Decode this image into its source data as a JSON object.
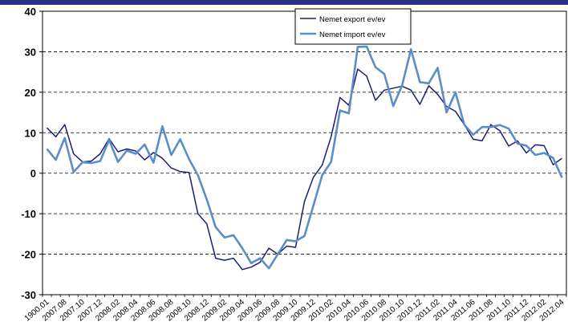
{
  "chart_data": {
    "type": "line",
    "title": "",
    "xlabel": "",
    "ylabel": "",
    "ylim": [
      -30,
      40
    ],
    "yticks": [
      -30,
      -20,
      -10,
      0,
      10,
      20,
      30,
      40
    ],
    "grid": "horizontal dashed",
    "legend_position": "top-center",
    "x_tick_labels": [
      "1900.01",
      "2007.08",
      "2007.10",
      "2007.12",
      "2008.02",
      "2008.04",
      "2008.06",
      "2008.08",
      "2008.10",
      "2008.12",
      "2009.02",
      "2009.04",
      "2009.06",
      "2009.08",
      "2009.10",
      "2009.12",
      "2010.02",
      "2010.04",
      "2010.06",
      "2010.08",
      "2010.10",
      "2010.12",
      "2011.02",
      "2011.04",
      "2011.06",
      "2011.08",
      "2011.10",
      "2011.12",
      "2012.02",
      "2012.04"
    ],
    "series": [
      {
        "name": "Nemet export ev/ev",
        "color": "#1b1f72",
        "values": [
          11.2,
          9.0,
          12.0,
          4.8,
          2.8,
          3.0,
          4.8,
          8.5,
          5.3,
          6.0,
          5.5,
          3.3,
          5.1,
          3.7,
          1.3,
          0.4,
          0.2,
          -10.0,
          -12.5,
          -21.0,
          -21.5,
          -21.0,
          -23.8,
          -23.2,
          -22.0,
          -18.5,
          -20.0,
          -18.0,
          -18.3,
          -7.0,
          -1.0,
          2.0,
          9.0,
          18.7,
          16.8,
          25.7,
          24.0,
          18.0,
          20.5,
          21.0,
          21.5,
          20.5,
          17.0,
          21.6,
          19.5,
          16.5,
          15.3,
          12.0,
          8.4,
          8.0,
          12.0,
          10.5,
          6.7,
          8.0,
          5.0,
          7.0,
          6.8,
          2.1,
          3.7
        ]
      },
      {
        "name": "Nemet import ev/ev",
        "color": "#5b8ec8",
        "values": [
          6.0,
          3.3,
          8.7,
          0.3,
          2.7,
          2.5,
          3.0,
          8.2,
          2.8,
          5.6,
          4.8,
          7.1,
          2.6,
          11.6,
          4.5,
          8.4,
          3.5,
          -0.5,
          -6.5,
          -13.3,
          -15.9,
          -15.3,
          -18.5,
          -22.2,
          -21.0,
          -23.5,
          -20.0,
          -16.5,
          -16.8,
          -15.5,
          -8.0,
          -0.5,
          2.8,
          15.5,
          14.8,
          31.2,
          31.3,
          26.2,
          24.5,
          16.6,
          21.7,
          30.6,
          22.5,
          22.2,
          26.0,
          15.0,
          20.0,
          12.0,
          9.5,
          11.4,
          11.4,
          11.9,
          11.0,
          7.3,
          6.8,
          4.5,
          5.0,
          3.8,
          -1.1
        ]
      }
    ]
  }
}
